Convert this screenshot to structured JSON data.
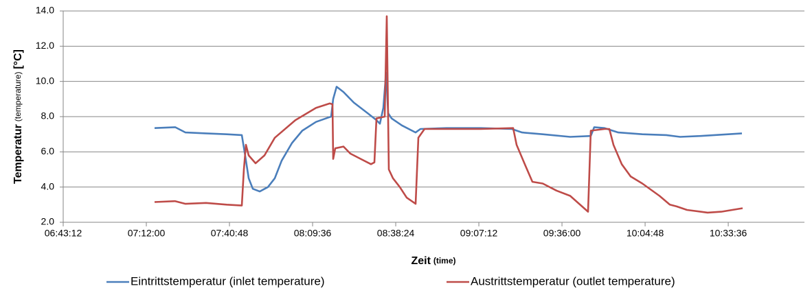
{
  "chart_data": {
    "type": "line",
    "y_label": {
      "main": "Temperatur",
      "note": "(temperature)",
      "unit": "[°C]"
    },
    "x_label": {
      "main": "Zeit",
      "note": "(time)"
    },
    "xlim": [
      "06:43:12",
      "11:00:00"
    ],
    "xticks": [
      "06:43:12",
      "07:12:00",
      "07:40:48",
      "08:09:36",
      "08:38:24",
      "09:07:12",
      "09:36:00",
      "10:04:48",
      "10:33:36"
    ],
    "ylim": [
      2,
      14
    ],
    "yticks": [
      {
        "value": 2,
        "label": "2.0"
      },
      {
        "value": 4,
        "label": "4.0"
      },
      {
        "value": 6,
        "label": "6.0"
      },
      {
        "value": 8,
        "label": "8.0"
      },
      {
        "value": 10,
        "label": "10.0"
      },
      {
        "value": 12,
        "label": "12.0"
      },
      {
        "value": 14,
        "label": "14.0"
      }
    ],
    "grid": true,
    "legend": "bottom",
    "series": [
      {
        "name": "Eintrittstemperatur (inlet temperature)",
        "color": "#4a7ebb",
        "x": [
          "07:14:51",
          "07:22:00",
          "07:25:34",
          "07:32:42",
          "07:39:51",
          "07:45:05",
          "07:46:02",
          "07:47:28",
          "07:48:53",
          "07:51:16",
          "07:54:07",
          "07:56:30",
          "07:58:53",
          "08:02:27",
          "08:06:01",
          "08:10:47",
          "08:15:04",
          "08:16:01",
          "08:16:44",
          "08:17:55",
          "08:20:18",
          "08:23:52",
          "08:28:38",
          "08:31:44",
          "08:32:55",
          "08:34:06",
          "08:35:04",
          "08:35:46",
          "08:36:58",
          "08:40:32",
          "08:45:18",
          "08:46:58",
          "08:56:00",
          "09:07:54",
          "09:18:37",
          "09:22:11",
          "09:29:19",
          "09:38:51",
          "09:45:59",
          "09:47:11",
          "09:50:45",
          "09:55:30",
          "10:03:50",
          "10:12:10",
          "10:16:56",
          "10:24:04",
          "10:33:35",
          "10:38:21"
        ],
        "values": [
          7.35,
          7.4,
          7.1,
          7.05,
          7.0,
          6.95,
          6.0,
          4.5,
          3.9,
          3.75,
          4.0,
          4.5,
          5.5,
          6.5,
          7.2,
          7.7,
          7.95,
          8.0,
          9.0,
          9.7,
          9.4,
          8.8,
          8.2,
          7.8,
          7.6,
          8.5,
          10.5,
          8.2,
          7.9,
          7.5,
          7.1,
          7.3,
          7.35,
          7.35,
          7.3,
          7.1,
          7.0,
          6.85,
          6.9,
          7.4,
          7.35,
          7.1,
          7.0,
          6.95,
          6.85,
          6.9,
          7.0,
          7.05
        ]
      },
      {
        "name": "Austrittstemperatur (outlet temperature)",
        "color": "#be4b48",
        "x": [
          "07:14:51",
          "07:22:00",
          "07:25:34",
          "07:32:42",
          "07:39:51",
          "07:45:05",
          "07:45:48",
          "07:46:30",
          "07:47:28",
          "07:49:50",
          "07:52:56",
          "07:56:30",
          "08:03:39",
          "08:10:47",
          "08:15:33",
          "08:16:30",
          "08:16:44",
          "08:17:27",
          "08:20:18",
          "08:22:41",
          "08:26:15",
          "08:29:49",
          "08:31:01",
          "08:31:44",
          "08:34:35",
          "08:35:18",
          "08:36:01",
          "08:37:26",
          "08:39:49",
          "08:42:12",
          "08:45:18",
          "08:46:15",
          "08:48:23",
          "08:56:00",
          "09:07:54",
          "09:19:05",
          "09:20:17",
          "09:23:23",
          "09:25:45",
          "09:29:19",
          "09:34:05",
          "09:38:51",
          "09:45:02",
          "09:45:59",
          "09:50:45",
          "09:52:25",
          "09:53:50",
          "09:56:42",
          "09:59:48",
          "10:03:50",
          "10:09:47",
          "10:13:21",
          "10:15:44",
          "10:19:18",
          "10:26:27",
          "10:31:12",
          "10:38:35"
        ],
        "values": [
          3.15,
          3.2,
          3.05,
          3.1,
          3.0,
          2.95,
          5.0,
          6.4,
          5.8,
          5.35,
          5.8,
          6.8,
          7.8,
          8.5,
          8.75,
          8.7,
          5.6,
          6.2,
          6.3,
          5.9,
          5.6,
          5.3,
          5.4,
          7.9,
          8.0,
          13.7,
          5.0,
          4.5,
          4.0,
          3.4,
          3.05,
          6.8,
          7.3,
          7.3,
          7.3,
          7.35,
          6.4,
          5.2,
          4.3,
          4.2,
          3.8,
          3.5,
          2.6,
          7.2,
          7.3,
          7.3,
          6.4,
          5.3,
          4.6,
          4.2,
          3.5,
          3.0,
          2.9,
          2.7,
          2.55,
          2.6,
          2.8
        ]
      }
    ]
  }
}
